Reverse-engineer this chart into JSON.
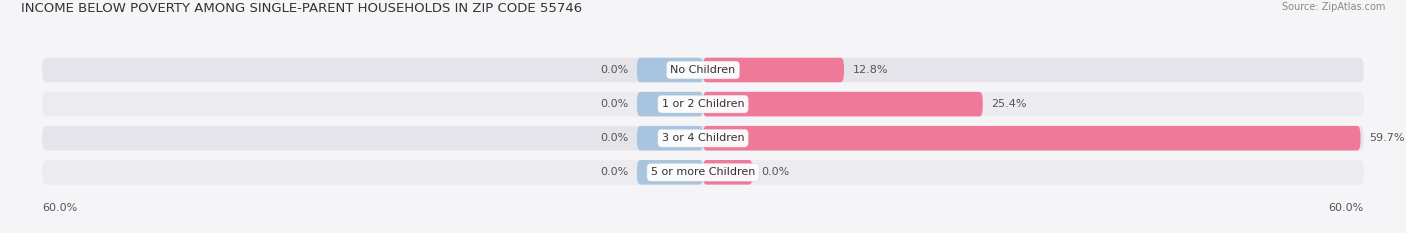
{
  "title": "INCOME BELOW POVERTY AMONG SINGLE-PARENT HOUSEHOLDS IN ZIP CODE 55746",
  "source": "Source: ZipAtlas.com",
  "categories": [
    "No Children",
    "1 or 2 Children",
    "3 or 4 Children",
    "5 or more Children"
  ],
  "single_father": [
    0.0,
    0.0,
    0.0,
    0.0
  ],
  "single_mother": [
    12.8,
    25.4,
    59.7,
    0.0
  ],
  "father_color": "#a8c4df",
  "mother_color": "#f07898",
  "bar_bg_color": "#e4e4ea",
  "bar_bg_color2": "#ebebf0",
  "bg_color": "#f5f5f8",
  "xlim": 60.0,
  "father_stub": 6.0,
  "mother_stub": 4.5,
  "title_fontsize": 9.5,
  "source_fontsize": 7,
  "label_fontsize": 8,
  "category_fontsize": 8,
  "legend_fontsize": 8.5
}
